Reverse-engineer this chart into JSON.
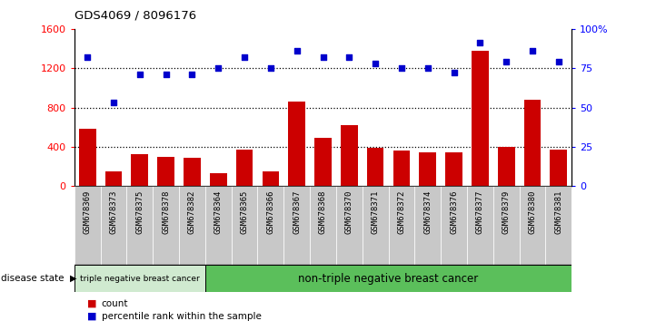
{
  "title": "GDS4069 / 8096176",
  "samples": [
    "GSM678369",
    "GSM678373",
    "GSM678375",
    "GSM678378",
    "GSM678382",
    "GSM678364",
    "GSM678365",
    "GSM678366",
    "GSM678367",
    "GSM678368",
    "GSM678370",
    "GSM678371",
    "GSM678372",
    "GSM678374",
    "GSM678376",
    "GSM678377",
    "GSM678379",
    "GSM678380",
    "GSM678381"
  ],
  "counts": [
    580,
    150,
    330,
    295,
    290,
    130,
    370,
    155,
    860,
    490,
    620,
    390,
    360,
    340,
    340,
    1380,
    395,
    880,
    370
  ],
  "percentiles": [
    82,
    53,
    71,
    71,
    71,
    75,
    82,
    75,
    86,
    82,
    82,
    78,
    75,
    75,
    72,
    91,
    79,
    86,
    79
  ],
  "group1_count": 5,
  "group1_label": "triple negative breast cancer",
  "group2_label": "non-triple negative breast cancer",
  "ylim_left": [
    0,
    1600
  ],
  "ylim_right": [
    0,
    100
  ],
  "yticks_left": [
    0,
    400,
    800,
    1200,
    1600
  ],
  "yticks_right": [
    0,
    25,
    50,
    75,
    100
  ],
  "ytick_labels_right": [
    "0",
    "25",
    "50",
    "75",
    "100%"
  ],
  "bar_color": "#cc0000",
  "dot_color": "#0000cc",
  "group1_bg": "#d0ead0",
  "group2_bg": "#5bbf5b",
  "tick_bg": "#c8c8c8",
  "legend_count_label": "count",
  "legend_pct_label": "percentile rank within the sample",
  "disease_state_label": "disease state"
}
